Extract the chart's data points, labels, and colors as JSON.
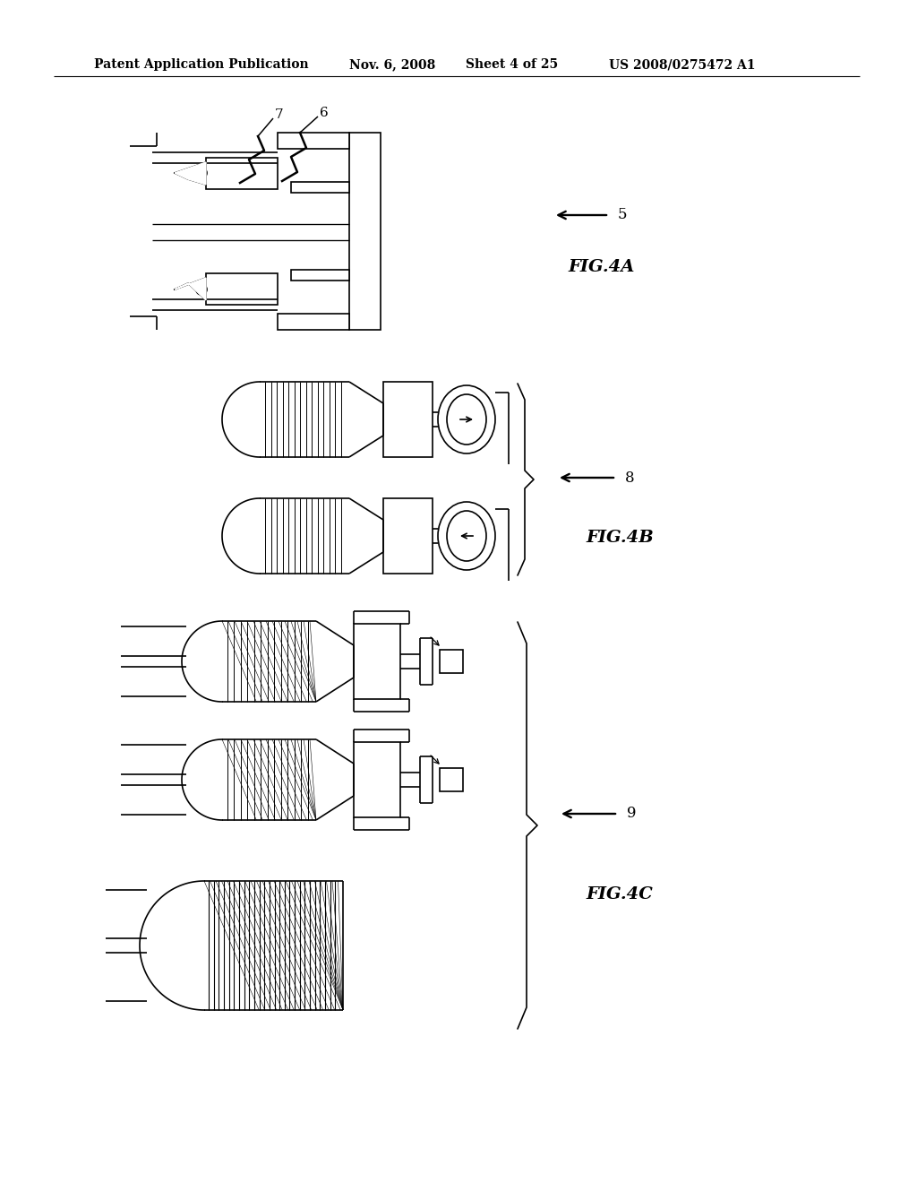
{
  "background_color": "#ffffff",
  "header_text": "Patent Application Publication",
  "header_date": "Nov. 6, 2008",
  "header_sheet": "Sheet 4 of 25",
  "header_patent": "US 2008/0275472 A1",
  "fig4a_label": "FIG.4A",
  "fig4b_label": "FIG.4B",
  "fig4c_label": "FIG.4C",
  "label_5": "5",
  "label_6": "6",
  "label_7": "7",
  "label_8": "8",
  "label_9": "9",
  "line_color": "#000000",
  "line_width": 1.2,
  "fig_label_fontsize": 14,
  "header_fontsize": 10
}
